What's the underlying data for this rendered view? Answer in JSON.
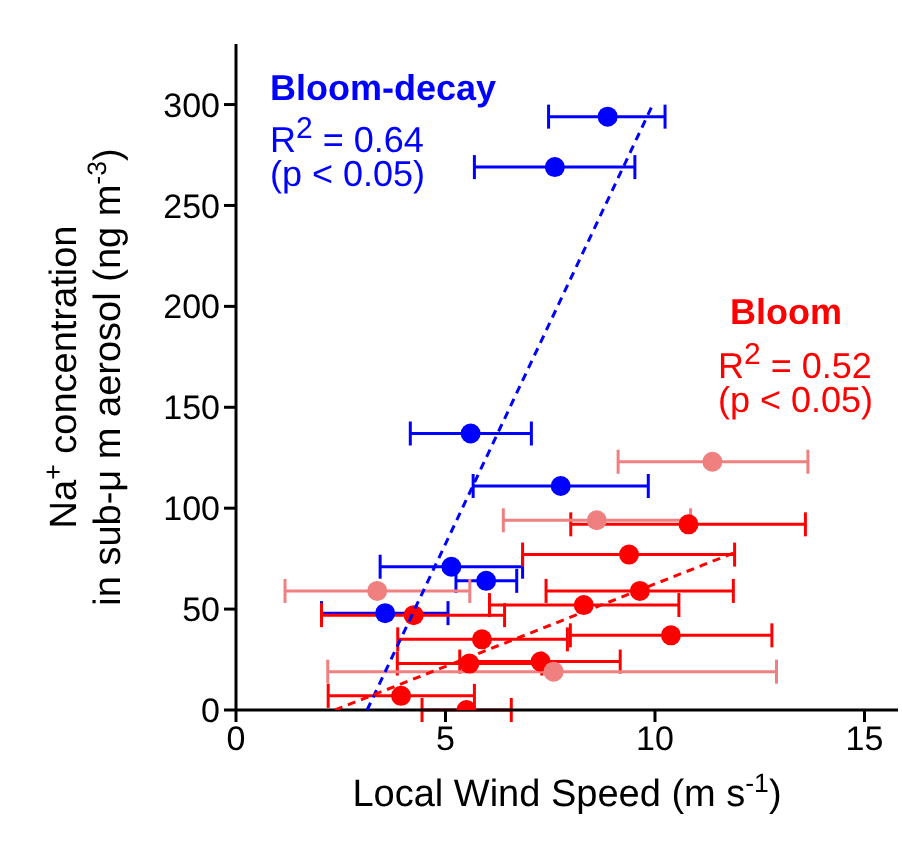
{
  "chart_data": {
    "type": "scatter",
    "xlabel": "Local Wind Speed (m s$^{-1}$)",
    "ylabel": "Na$^{+}$ concentration\nin sub-μ m aerosol (ng m$^{-3}$)",
    "xlim": [
      0,
      15.8
    ],
    "ylim": [
      0,
      330
    ],
    "xticks": [
      0,
      5,
      10,
      15
    ],
    "yticks": [
      0,
      50,
      100,
      150,
      200,
      250,
      300
    ],
    "grid": false,
    "marker": "circle",
    "annotations": [
      "R$^{2}$ = 0.64",
      "(p < 0.05)",
      "R$^{2}$ = 0.52",
      "(p < 0.05)"
    ],
    "series": [
      {
        "name": "Bloom-decay",
        "color": "#0000ff",
        "x": [
          8.87,
          7.61,
          5.6,
          7.75,
          5.14,
          5.97,
          3.56
        ],
        "values": [
          294,
          269,
          137,
          111,
          71,
          64,
          48
        ],
        "xerrors": [
          [
            7.46,
            10.24
          ],
          [
            5.69,
            9.52
          ],
          [
            4.16,
            7.05
          ],
          [
            5.66,
            9.84
          ],
          [
            3.44,
            6.84
          ],
          [
            5.25,
            6.7
          ],
          [
            2.04,
            5.06
          ]
        ]
      },
      {
        "name": "Bloom",
        "color": "#ff0000",
        "x": [
          10.8,
          9.38,
          9.64,
          8.3,
          4.24,
          10.38,
          5.87,
          7.27,
          5.57,
          3.94,
          5.5
        ],
        "values": [
          92,
          77,
          59,
          52,
          47,
          37,
          35,
          24,
          23,
          7,
          0
        ],
        "xerrors": [
          [
            7.99,
            13.59
          ],
          [
            6.84,
            11.9
          ],
          [
            7.4,
            11.87
          ],
          [
            6.05,
            10.57
          ],
          [
            2.04,
            6.41
          ],
          [
            7.98,
            12.79
          ],
          [
            3.86,
            7.91
          ],
          [
            5.34,
            9.17
          ],
          [
            3.85,
            7.3
          ],
          [
            2.2,
            5.69
          ],
          [
            4.44,
            6.57
          ]
        ]
      },
      {
        "color": "#f08080",
        "x": [
          11.37,
          8.61,
          3.37,
          7.58
        ],
        "values": [
          123,
          94,
          59,
          19
        ],
        "xerrors": [
          [
            9.12,
            13.65
          ],
          [
            6.38,
            10.85
          ],
          [
            1.17,
            5.58
          ],
          [
            2.19,
            12.9
          ]
        ]
      },
      {
        "type": "line",
        "color": "#0000ff",
        "line_style": "dashed",
        "marker": "none",
        "x": [
          3.13,
          9.97
        ],
        "values": [
          0,
          301
        ]
      },
      {
        "type": "line",
        "color": "#ff0000",
        "line_style": "dashed",
        "marker": "none",
        "x": [
          2.36,
          11.9
        ],
        "values": [
          0,
          78
        ]
      }
    ]
  }
}
